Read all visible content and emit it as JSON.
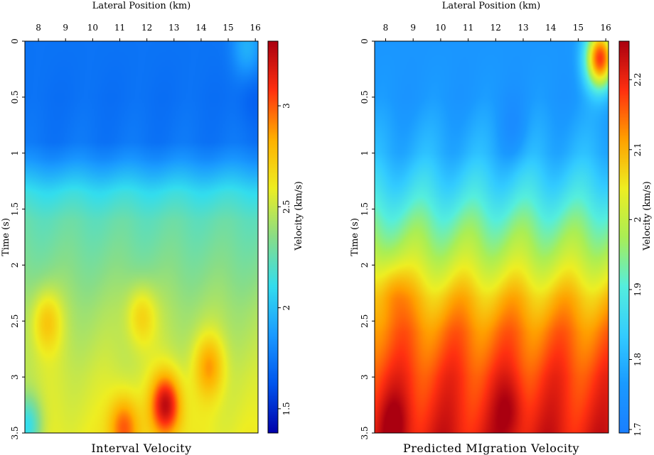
{
  "chart_data": [
    {
      "type": "heatmap",
      "title": "Interval Velocity",
      "xlabel": "Lateral Position (km)",
      "ylabel": "Time (s)",
      "xlim": [
        7.5,
        16.1
      ],
      "ylim": [
        0,
        3.5
      ],
      "x_ticks": [
        8,
        9,
        10,
        11,
        12,
        13,
        14,
        15,
        16
      ],
      "y_ticks": [
        0,
        0.5,
        1,
        1.5,
        2,
        2.5,
        3,
        3.5
      ],
      "y_tick_labels": [
        "0",
        "0.5",
        "1",
        "1.5",
        "2",
        "2.5",
        "3",
        "3.5"
      ],
      "colorbar": {
        "label": "Velocity (km/s)",
        "range": [
          1.38,
          3.32
        ],
        "ticks": [
          1.5,
          2,
          2.5,
          3
        ],
        "tick_labels": [
          "1.5",
          "2",
          "2.5",
          "3"
        ],
        "colors_low_to_high": [
          "#0000aa",
          "#0055ee",
          "#1a9aff",
          "#33ddee",
          "#88dd88",
          "#eeee22",
          "#ffb000",
          "#ff3010",
          "#aa0010"
        ]
      },
      "background_profile": {
        "t": [
          0,
          0.5,
          0.9,
          1.05,
          1.2,
          1.35,
          1.6,
          2.0,
          2.4,
          3.0,
          3.5
        ],
        "v": [
          1.73,
          1.72,
          1.74,
          1.83,
          1.97,
          2.12,
          2.25,
          2.33,
          2.42,
          2.52,
          2.58
        ]
      },
      "anomalies": [
        {
          "x": 8.3,
          "t": 2.5,
          "dv": 0.3
        },
        {
          "x": 11.8,
          "t": 2.45,
          "dv": 0.28
        },
        {
          "x": 12.7,
          "t": 3.25,
          "dv": 0.72
        },
        {
          "x": 14.3,
          "t": 2.9,
          "dv": 0.35
        },
        {
          "x": 11.15,
          "t": 3.45,
          "dv": 0.45
        },
        {
          "x": 15.7,
          "t": 0.05,
          "dv": 0.22
        },
        {
          "x": 15.9,
          "t": 0.5,
          "dv": -0.06
        },
        {
          "x": 7.6,
          "t": 3.45,
          "dv": -0.45
        }
      ]
    },
    {
      "type": "heatmap",
      "title": "Predicted MIgration Velocity",
      "xlabel": "Lateral Position (km)",
      "ylabel": "Time (s)",
      "xlim": [
        7.6,
        16.1
      ],
      "ylim": [
        0,
        3.5
      ],
      "x_ticks": [
        8,
        9,
        10,
        11,
        12,
        13,
        14,
        15,
        16
      ],
      "y_ticks": [
        0,
        0.5,
        1,
        1.5,
        2,
        2.5,
        3,
        3.5
      ],
      "y_tick_labels": [
        "0",
        "0.5",
        "1",
        "1.5",
        "2",
        "2.5",
        "3",
        "3.5"
      ],
      "colorbar": {
        "label": "Velocity (km/s)",
        "range": [
          1.695,
          2.255
        ],
        "ticks": [
          1.7,
          1.8,
          1.9,
          2,
          2.1,
          2.2
        ],
        "tick_labels": [
          "1.7",
          "1.8",
          "1.9",
          "2",
          "2.1",
          "2.2"
        ],
        "colors_low_to_high": [
          "#1a7fff",
          "#1a9aff",
          "#33ccff",
          "#55eedd",
          "#aaee55",
          "#eeee22",
          "#ffa000",
          "#ff3010",
          "#aa0010"
        ]
      },
      "background_profile": {
        "t": [
          0,
          0.5,
          1.0,
          1.3,
          1.6,
          1.9,
          2.1,
          2.3,
          2.6,
          3.0,
          3.5
        ],
        "v": [
          1.755,
          1.76,
          1.8,
          1.86,
          1.93,
          1.99,
          2.04,
          2.09,
          2.14,
          2.18,
          2.21
        ]
      },
      "anomalies": [
        {
          "x": 15.8,
          "t": 0.15,
          "dv": 0.42
        },
        {
          "x": 12.7,
          "t": 0.8,
          "dv": -0.04
        },
        {
          "x": 8.2,
          "t": 2.2,
          "dv": 0.05
        },
        {
          "x": 12.5,
          "t": 3.3,
          "dv": 0.05
        },
        {
          "x": 8.3,
          "t": 3.4,
          "dv": 0.05
        }
      ]
    }
  ]
}
